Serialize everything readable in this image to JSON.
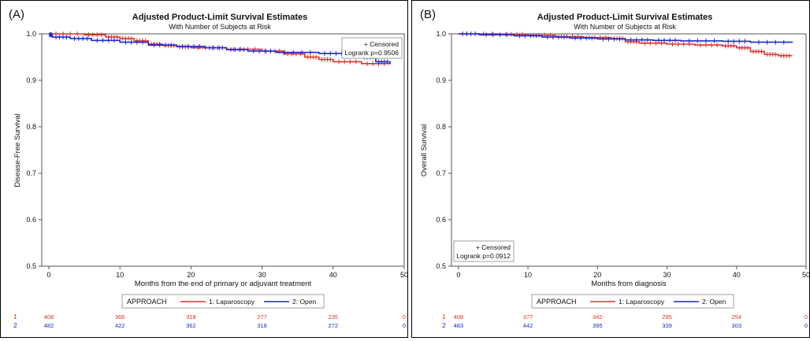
{
  "panels": [
    {
      "panel_label": "(A)",
      "title": "Adjusted Product-Limit Survival Estimates",
      "subtitle": "With Number of Subjects at Risk",
      "legend_box": {
        "censored": "+ Censored",
        "logrank": "Logrank p=0.9506"
      },
      "group_legend": {
        "title": "APPROACH",
        "items": [
          "1: Laparoscopy",
          "2: Open"
        ]
      },
      "risk_table": {
        "row_labels": [
          "1",
          "2"
        ],
        "rows": [
          [
            "408",
            "366",
            "318",
            "277",
            "235",
            "0"
          ],
          [
            "482",
            "422",
            "362",
            "318",
            "272",
            "0"
          ]
        ]
      }
    },
    {
      "panel_label": "(B)",
      "title": "Adjusted Product-Limit Survival Estimates",
      "subtitle": "With Number of Subjects at Risk",
      "legend_box": {
        "censored": "+ Censored",
        "logrank": "Logrank p=0.0912"
      },
      "group_legend": {
        "title": "APPROACH",
        "items": [
          "1: Laparoscopy",
          "2: Open"
        ]
      },
      "risk_table": {
        "row_labels": [
          "1",
          "2"
        ],
        "rows": [
          [
            "408",
            "377",
            "342",
            "295",
            "254",
            "0"
          ],
          [
            "483",
            "442",
            "395",
            "339",
            "303",
            "0"
          ]
        ]
      }
    }
  ],
  "colors": {
    "laparoscopy": "#e0302a",
    "open": "#1c28d0",
    "axis": "#333333"
  },
  "chart_data": [
    {
      "type": "line",
      "step": true,
      "title": "Adjusted Product-Limit Survival Estimates",
      "subtitle": "With Number of Subjects at Risk",
      "xlabel": "Months from the end of primary or adjuvant treatment",
      "ylabel": "Disease-Free Survival",
      "xlim": [
        -1,
        50
      ],
      "ylim": [
        0.5,
        1.0
      ],
      "xticks": [
        0,
        10,
        20,
        30,
        40,
        50
      ],
      "yticks": [
        0.5,
        0.6,
        0.7,
        0.8,
        0.9,
        1.0
      ],
      "grid": false,
      "legend": "bottom",
      "series": [
        {
          "name": "1: Laparoscopy",
          "color": "#e0302a",
          "points": [
            [
              0,
              1.0
            ],
            [
              5,
              0.998
            ],
            [
              8,
              0.993
            ],
            [
              10,
              0.99
            ],
            [
              12,
              0.985
            ],
            [
              14,
              0.978
            ],
            [
              16,
              0.975
            ],
            [
              18,
              0.972
            ],
            [
              20,
              0.97
            ],
            [
              25,
              0.967
            ],
            [
              30,
              0.963
            ],
            [
              33,
              0.957
            ],
            [
              36,
              0.95
            ],
            [
              38,
              0.945
            ],
            [
              40,
              0.94
            ],
            [
              44,
              0.936
            ],
            [
              48,
              0.935
            ]
          ]
        },
        {
          "name": "2: Open",
          "color": "#1c28d0",
          "points": [
            [
              0,
              0.998
            ],
            [
              0.5,
              0.993
            ],
            [
              3,
              0.99
            ],
            [
              6,
              0.986
            ],
            [
              10,
              0.982
            ],
            [
              14,
              0.976
            ],
            [
              18,
              0.973
            ],
            [
              22,
              0.97
            ],
            [
              25,
              0.966
            ],
            [
              28,
              0.963
            ],
            [
              32,
              0.96
            ],
            [
              38,
              0.958
            ],
            [
              42,
              0.955
            ],
            [
              44,
              0.95
            ],
            [
              46,
              0.94
            ],
            [
              48,
              0.935
            ]
          ]
        }
      ]
    },
    {
      "type": "line",
      "step": true,
      "title": "Adjusted Product-Limit Survival Estimates",
      "subtitle": "With Number of Subjects at Risk",
      "xlabel": "Months from diagnosis",
      "ylabel": "Overall Survival",
      "xlim": [
        -1,
        50
      ],
      "ylim": [
        0.5,
        1.0
      ],
      "xticks": [
        0,
        10,
        20,
        30,
        40,
        50
      ],
      "yticks": [
        0.5,
        0.6,
        0.7,
        0.8,
        0.9,
        1.0
      ],
      "grid": false,
      "legend": "bottom",
      "series": [
        {
          "name": "1: Laparoscopy",
          "color": "#e0302a",
          "points": [
            [
              0,
              1.0
            ],
            [
              6,
              0.999
            ],
            [
              10,
              0.997
            ],
            [
              14,
              0.994
            ],
            [
              18,
              0.992
            ],
            [
              22,
              0.99
            ],
            [
              24,
              0.983
            ],
            [
              26,
              0.98
            ],
            [
              30,
              0.978
            ],
            [
              34,
              0.976
            ],
            [
              38,
              0.974
            ],
            [
              40,
              0.97
            ],
            [
              42,
              0.962
            ],
            [
              44,
              0.956
            ],
            [
              46,
              0.953
            ],
            [
              48,
              0.953
            ]
          ]
        },
        {
          "name": "2: Open",
          "color": "#1c28d0",
          "points": [
            [
              0,
              1.0
            ],
            [
              3,
              0.998
            ],
            [
              8,
              0.996
            ],
            [
              12,
              0.993
            ],
            [
              16,
              0.991
            ],
            [
              20,
              0.989
            ],
            [
              24,
              0.987
            ],
            [
              28,
              0.986
            ],
            [
              32,
              0.985
            ],
            [
              38,
              0.984
            ],
            [
              42,
              0.982
            ],
            [
              48,
              0.981
            ]
          ]
        }
      ]
    }
  ]
}
